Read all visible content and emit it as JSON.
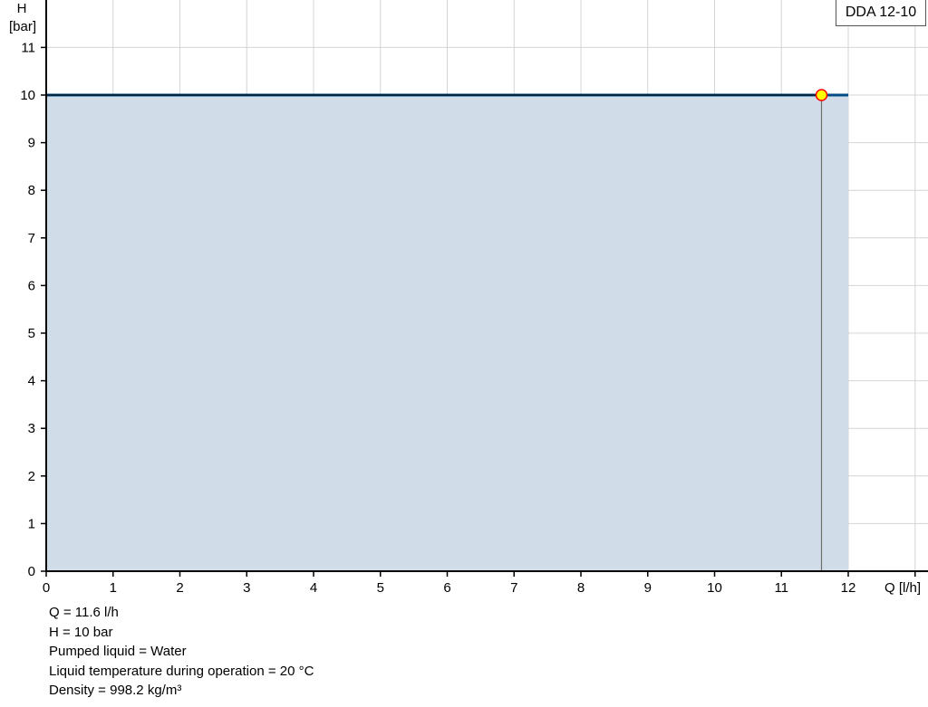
{
  "chart_data": {
    "type": "area",
    "title": "",
    "xlabel": "Q [l/h]",
    "ylabel_line1": "H",
    "ylabel_line2": "[bar]",
    "xlim": [
      0,
      13
    ],
    "ylim": [
      0,
      12
    ],
    "xticks": [
      0,
      1,
      2,
      3,
      4,
      5,
      6,
      7,
      8,
      9,
      10,
      11,
      12,
      13
    ],
    "xtick_labels": [
      "0",
      "1",
      "2",
      "3",
      "4",
      "5",
      "6",
      "7",
      "8",
      "9",
      "10",
      "11",
      "12"
    ],
    "yticks": [
      0,
      1,
      2,
      3,
      4,
      5,
      6,
      7,
      8,
      9,
      10,
      11
    ],
    "ytick_labels": [
      "0",
      "1",
      "2",
      "3",
      "4",
      "5",
      "6",
      "7",
      "8",
      "9",
      "10",
      "11"
    ],
    "grid": true,
    "legend": {
      "label": "DDA 12-10",
      "placement": "top-right"
    },
    "series": [
      {
        "name": "DDA 12-10",
        "x": [
          0,
          12
        ],
        "y": [
          10,
          10
        ],
        "color": "#004b87",
        "fill": "#d0dce7"
      }
    ],
    "duty_point": {
      "x": 11.6,
      "y": 10,
      "fill": "#ffff00",
      "stroke": "#ff0000"
    },
    "duty_line_color": "#000000",
    "drop_line_color": "#6e6e6e"
  },
  "info": [
    "Q = 11.6 l/h",
    "H = 10 bar",
    "Pumped liquid = Water",
    "Liquid temperature during operation = 20 °C",
    "Density = 998.2 kg/m³"
  ]
}
